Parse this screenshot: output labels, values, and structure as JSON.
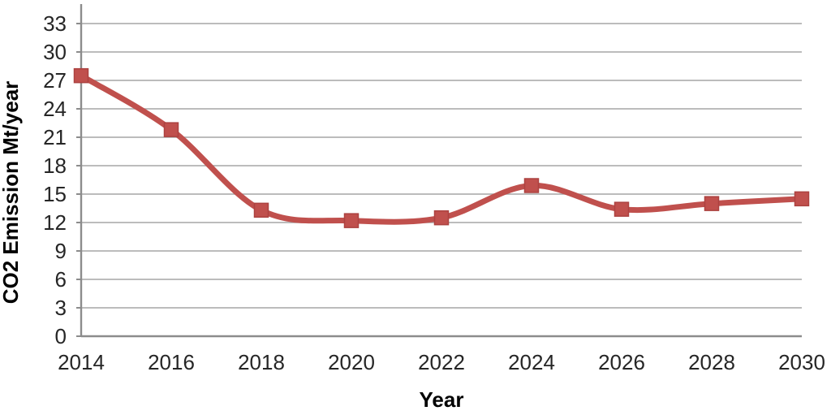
{
  "chart_data": {
    "type": "line",
    "title": "",
    "xlabel": "Year",
    "ylabel": "CO2 Emission Mt/year",
    "categories": [
      "2014",
      "2016",
      "2018",
      "2020",
      "2022",
      "2024",
      "2026",
      "2028",
      "2030"
    ],
    "series": [
      {
        "name": "CO2 Emission Mt/year",
        "values": [
          27.5,
          21.8,
          13.3,
          12.2,
          12.5,
          15.9,
          13.4,
          14.0,
          14.5
        ]
      }
    ],
    "ylim": [
      0,
      33
    ],
    "yticks": [
      0,
      3,
      6,
      9,
      12,
      15,
      18,
      21,
      24,
      27,
      30,
      33
    ],
    "grid": "horizontal-major",
    "legend": "none",
    "line_style": "smooth",
    "marker": "square",
    "colors": {
      "series": "#C0504D",
      "marker_border": "#AC4240",
      "gridline": "#A6A6A6",
      "axis_line": "#8C8C8C",
      "tick_text": "#262626",
      "title_text": "#000000"
    }
  }
}
